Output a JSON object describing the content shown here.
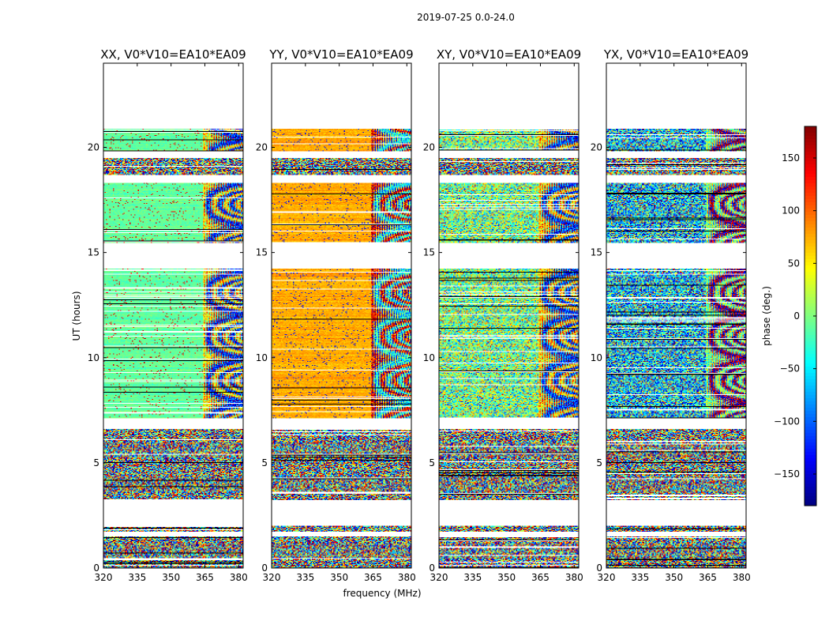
{
  "chart_data": {
    "type": "heatmap",
    "title": "2019-07-25 0.0-24.0",
    "xlabel": "frequency (MHz)",
    "ylabel": "UT (hours)",
    "xlim": [
      320,
      382
    ],
    "ylim": [
      0,
      24
    ],
    "xticks": [
      320,
      335,
      350,
      365,
      380
    ],
    "yticks": [
      0,
      5,
      10,
      15,
      20
    ],
    "colorbar": {
      "label": "phase (deg.)",
      "range": [
        -180,
        180
      ],
      "ticks": [
        150,
        100,
        50,
        0,
        -50,
        -100,
        -150
      ],
      "tick_labels": [
        "150",
        "100",
        "50",
        "0",
        "−50",
        "−100",
        "−150"
      ],
      "colormap": "jet"
    },
    "data_blocks_ut": [
      [
        0.0,
        0.55
      ],
      [
        0.55,
        1.5
      ],
      [
        1.75,
        2.0
      ],
      [
        3.25,
        6.6
      ],
      [
        7.1,
        14.25
      ],
      [
        15.45,
        18.3
      ],
      [
        18.7,
        19.5
      ],
      [
        19.8,
        20.9
      ]
    ],
    "bandpass_edge_mhz": 364,
    "panels": [
      {
        "title": "XX, V0*V10=EA10*EA09",
        "base_phase_deg": -10,
        "noise": "low"
      },
      {
        "title": "YY, V0*V10=EA10*EA09",
        "base_phase_deg": 75,
        "noise": "low"
      },
      {
        "title": "XY, V0*V10=EA10*EA09",
        "base_phase_deg": 0,
        "noise": "high"
      },
      {
        "title": "YX, V0*V10=EA10*EA09",
        "base_phase_deg": -60,
        "noise": "very high"
      }
    ]
  }
}
